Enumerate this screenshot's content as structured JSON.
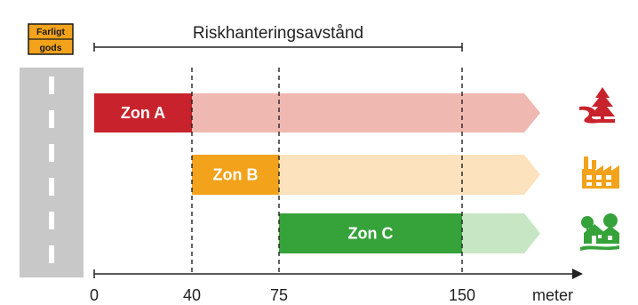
{
  "sign": {
    "line1": "Farligt",
    "line2": "gods",
    "color": "#F2A21B"
  },
  "header": {
    "title": "Riskhanteringsavstånd",
    "range": [
      0,
      150
    ]
  },
  "axis": {
    "unit": "meter",
    "ticks": [
      {
        "value": 0,
        "label": "0"
      },
      {
        "value": 40,
        "label": "40"
      },
      {
        "value": 75,
        "label": "75"
      },
      {
        "value": 150,
        "label": "150"
      }
    ],
    "dashed_at": [
      40,
      75,
      150
    ]
  },
  "zones": [
    {
      "key": "a",
      "label": "Zon A",
      "start": 0,
      "end": 40,
      "color": "#C8232C",
      "light": "#EFB8B1",
      "icon": "road-tree-icon"
    },
    {
      "key": "b",
      "label": "Zon B",
      "start": 40,
      "end": 75,
      "color": "#F2A21B",
      "light": "#FCE2BD",
      "icon": "factory-icon"
    },
    {
      "key": "c",
      "label": "Zon C",
      "start": 75,
      "end": 150,
      "color": "#35A23A",
      "light": "#C7E6C3",
      "icon": "houses-trees-icon"
    }
  ]
}
